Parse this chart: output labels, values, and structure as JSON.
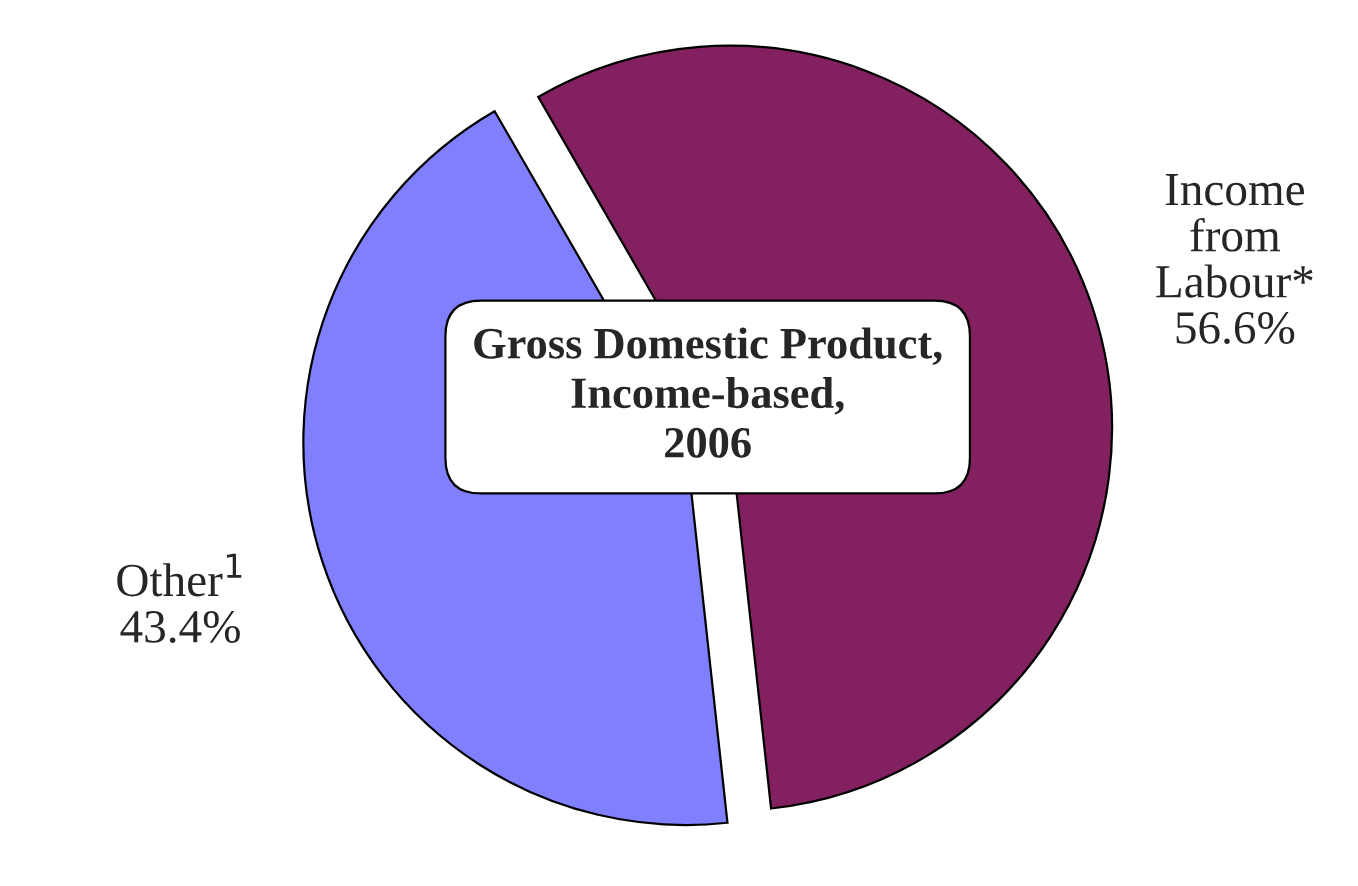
{
  "chart_data": {
    "type": "pie",
    "title": "Gross Domestic Product,\nIncome-based,\n2006",
    "categories": [
      "Income\nfrom\nLabour*",
      "Other$^{1}$"
    ],
    "values": [
      56.6,
      43.4
    ],
    "value_labels": [
      "56.6%",
      "43.4%"
    ],
    "colors": [
      "#822060",
      "#8080ff"
    ],
    "legend": false
  }
}
